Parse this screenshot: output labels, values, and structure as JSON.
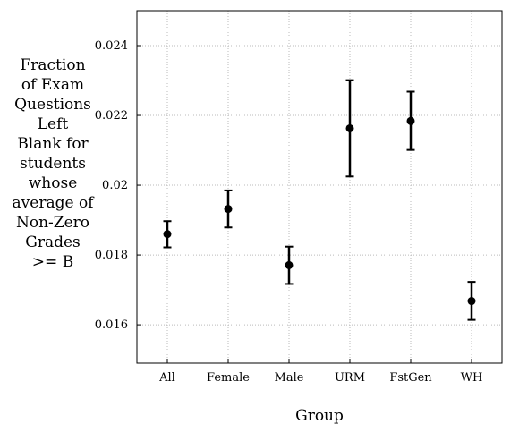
{
  "chart_data": {
    "type": "scatter",
    "title": "",
    "xlabel": "Group",
    "ylabel_lines": [
      "Fraction",
      "of Exam",
      "Questions",
      "Left",
      "Blank for",
      "students",
      "whose",
      "average of",
      "Non-Zero",
      "Grades",
      ">= B"
    ],
    "categories": [
      "All",
      "Female",
      "Male",
      "URM",
      "FstGen",
      "WH"
    ],
    "values": [
      0.0186,
      0.01932,
      0.01771,
      0.02163,
      0.02184,
      0.01668
    ],
    "error_low": [
      0.01822,
      0.01879,
      0.01717,
      0.02025,
      0.02101,
      0.01614
    ],
    "error_high": [
      0.01897,
      0.01985,
      0.01824,
      0.02301,
      0.02268,
      0.01723
    ],
    "yticks": [
      0.016,
      0.018,
      0.02,
      0.022,
      0.024
    ],
    "ytick_labels": [
      "0.016",
      "0.018",
      "0.02",
      "0.022",
      "0.024"
    ],
    "ylim": [
      0.0149,
      0.025
    ],
    "grid": true,
    "colors": {
      "marker": "#000000",
      "grid": "#bbbbbb",
      "axis": "#000000"
    }
  }
}
